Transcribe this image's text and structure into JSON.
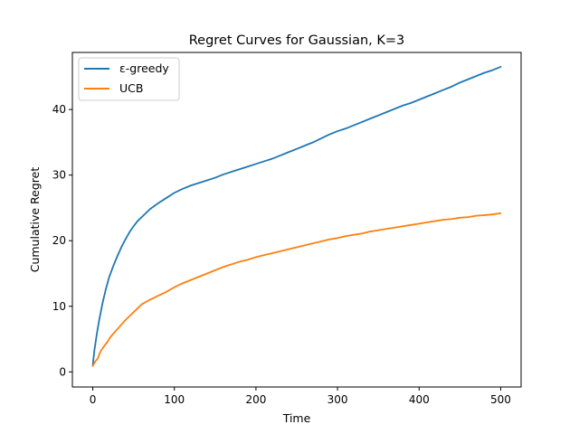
{
  "chart_data": {
    "type": "line",
    "title": "Regret Curves for Gaussian, K=3",
    "xlabel": "Time",
    "ylabel": "Cumulative Regret",
    "xlim": [
      -25,
      525
    ],
    "ylim": [
      -2.3,
      48.7
    ],
    "xticks": [
      0,
      100,
      200,
      300,
      400,
      500
    ],
    "yticks": [
      0,
      10,
      20,
      30,
      40
    ],
    "grid": false,
    "legend_position": "top-left",
    "series": [
      {
        "name": "ε-greedy",
        "color": "#1f77b4",
        "x": [
          0,
          2,
          5,
          8,
          12,
          16,
          20,
          25,
          30,
          35,
          40,
          45,
          50,
          55,
          60,
          65,
          70,
          80,
          90,
          100,
          110,
          120,
          130,
          140,
          150,
          160,
          170,
          180,
          190,
          200,
          210,
          220,
          230,
          240,
          250,
          260,
          270,
          280,
          290,
          300,
          310,
          320,
          330,
          340,
          350,
          360,
          370,
          380,
          390,
          400,
          410,
          420,
          430,
          440,
          450,
          460,
          470,
          480,
          490,
          500
        ],
        "values": [
          1.0,
          3.3,
          5.8,
          8.0,
          10.5,
          12.6,
          14.4,
          16.1,
          17.6,
          19.0,
          20.2,
          21.3,
          22.2,
          23.0,
          23.6,
          24.2,
          24.8,
          25.7,
          26.5,
          27.3,
          27.9,
          28.4,
          28.8,
          29.2,
          29.6,
          30.1,
          30.5,
          30.9,
          31.3,
          31.7,
          32.1,
          32.5,
          33.0,
          33.5,
          34.0,
          34.5,
          35.0,
          35.6,
          36.2,
          36.7,
          37.1,
          37.6,
          38.1,
          38.6,
          39.1,
          39.6,
          40.1,
          40.6,
          41.0,
          41.5,
          42.0,
          42.5,
          43.0,
          43.5,
          44.1,
          44.6,
          45.1,
          45.6,
          46.0,
          46.5
        ]
      },
      {
        "name": "UCB",
        "color": "#ff7f0e",
        "x": [
          0,
          3,
          6,
          9,
          12,
          15,
          18,
          21,
          25,
          30,
          35,
          40,
          45,
          50,
          55,
          60,
          70,
          80,
          90,
          100,
          110,
          120,
          130,
          140,
          150,
          160,
          170,
          180,
          190,
          200,
          210,
          220,
          230,
          240,
          250,
          260,
          270,
          280,
          290,
          300,
          310,
          320,
          330,
          340,
          350,
          360,
          370,
          380,
          390,
          400,
          410,
          420,
          430,
          440,
          450,
          460,
          470,
          480,
          490,
          500
        ],
        "values": [
          0.9,
          1.6,
          2.0,
          3.0,
          3.6,
          4.1,
          4.6,
          5.2,
          5.8,
          6.5,
          7.2,
          7.9,
          8.5,
          9.1,
          9.7,
          10.3,
          11.0,
          11.6,
          12.2,
          12.9,
          13.5,
          14.0,
          14.5,
          15.0,
          15.5,
          16.0,
          16.4,
          16.8,
          17.1,
          17.5,
          17.8,
          18.1,
          18.4,
          18.7,
          19.0,
          19.3,
          19.6,
          19.9,
          20.2,
          20.4,
          20.7,
          20.9,
          21.1,
          21.4,
          21.6,
          21.8,
          22.0,
          22.2,
          22.4,
          22.6,
          22.8,
          23.0,
          23.2,
          23.3,
          23.5,
          23.6,
          23.8,
          23.9,
          24.0,
          24.2
        ]
      }
    ]
  }
}
